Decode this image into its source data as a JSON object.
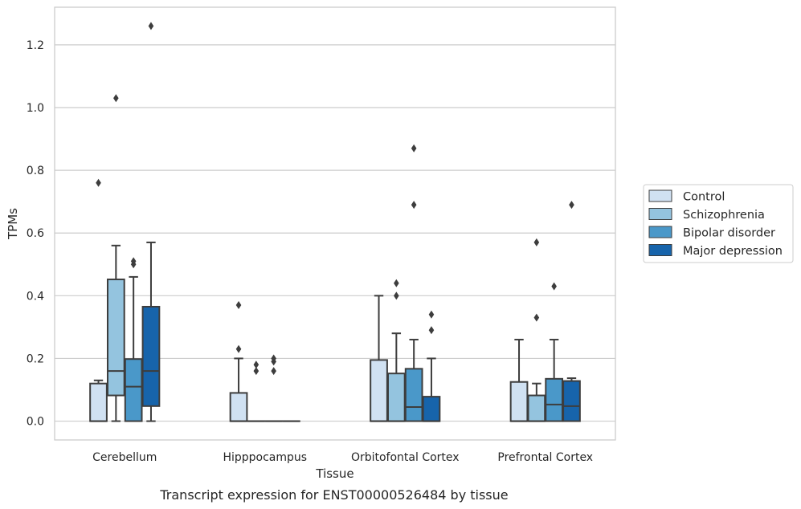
{
  "caption": "Transcript expression for ENST00000526484 by tissue",
  "chart_data": {
    "type": "box",
    "xlabel": "Tissue",
    "ylabel": "TPMs",
    "ylim": [
      -0.06,
      1.32
    ],
    "yticks": [
      "0.0",
      "0.2",
      "0.4",
      "0.6",
      "0.8",
      "1.0",
      "1.2"
    ],
    "grid": true,
    "legend_position": "right",
    "categories": [
      "Cerebellum",
      "Hipppocampus",
      "Orbitofontal Cortex",
      "Prefrontal Cortex"
    ],
    "series": [
      {
        "name": "Control",
        "color": "#d0e1f2",
        "boxes": [
          {
            "q1": 0.0,
            "median": 0.0,
            "q3": 0.12,
            "whisker_low": 0.0,
            "whisker_high": 0.13,
            "outliers": [
              0.76
            ]
          },
          {
            "q1": 0.0,
            "median": 0.0,
            "q3": 0.09,
            "whisker_low": 0.0,
            "whisker_high": 0.2,
            "outliers": [
              0.23,
              0.37
            ]
          },
          {
            "q1": 0.0,
            "median": 0.0,
            "q3": 0.195,
            "whisker_low": 0.0,
            "whisker_high": 0.4,
            "outliers": []
          },
          {
            "q1": 0.0,
            "median": 0.0,
            "q3": 0.125,
            "whisker_low": 0.0,
            "whisker_high": 0.26,
            "outliers": []
          }
        ]
      },
      {
        "name": "Schizophrenia",
        "color": "#94c4df",
        "boxes": [
          {
            "q1": 0.082,
            "median": 0.16,
            "q3": 0.452,
            "whisker_low": 0.0,
            "whisker_high": 0.56,
            "outliers": [
              1.03
            ]
          },
          {
            "q1": 0.0,
            "median": 0.0,
            "q3": 0.0,
            "whisker_low": 0.0,
            "whisker_high": 0.0,
            "outliers": [
              0.16,
              0.18
            ]
          },
          {
            "q1": 0.0,
            "median": 0.0,
            "q3": 0.152,
            "whisker_low": 0.0,
            "whisker_high": 0.28,
            "outliers": [
              0.4,
              0.44
            ]
          },
          {
            "q1": 0.0,
            "median": 0.0,
            "q3": 0.082,
            "whisker_low": 0.0,
            "whisker_high": 0.12,
            "outliers": [
              0.33,
              0.57
            ]
          }
        ]
      },
      {
        "name": "Bipolar disorder",
        "color": "#4a98c9",
        "boxes": [
          {
            "q1": 0.0,
            "median": 0.11,
            "q3": 0.198,
            "whisker_low": 0.0,
            "whisker_high": 0.46,
            "outliers": [
              0.5,
              0.51
            ]
          },
          {
            "q1": 0.0,
            "median": 0.0,
            "q3": 0.0,
            "whisker_low": 0.0,
            "whisker_high": 0.0,
            "outliers": [
              0.16,
              0.19,
              0.2
            ]
          },
          {
            "q1": 0.0,
            "median": 0.045,
            "q3": 0.167,
            "whisker_low": 0.0,
            "whisker_high": 0.26,
            "outliers": [
              0.69,
              0.87
            ]
          },
          {
            "q1": 0.0,
            "median": 0.053,
            "q3": 0.135,
            "whisker_low": 0.0,
            "whisker_high": 0.26,
            "outliers": [
              0.43
            ]
          }
        ]
      },
      {
        "name": "Major depression",
        "color": "#1764ab",
        "boxes": [
          {
            "q1": 0.048,
            "median": 0.16,
            "q3": 0.365,
            "whisker_low": 0.0,
            "whisker_high": 0.57,
            "outliers": [
              1.26
            ]
          },
          {
            "q1": 0.0,
            "median": 0.0,
            "q3": 0.0,
            "whisker_low": 0.0,
            "whisker_high": 0.0,
            "outliers": []
          },
          {
            "q1": 0.0,
            "median": 0.0,
            "q3": 0.078,
            "whisker_low": 0.0,
            "whisker_high": 0.2,
            "outliers": [
              0.29,
              0.34
            ]
          },
          {
            "q1": 0.0,
            "median": 0.048,
            "q3": 0.128,
            "whisker_low": 0.0,
            "whisker_high": 0.137,
            "outliers": [
              0.69
            ]
          }
        ]
      }
    ]
  }
}
